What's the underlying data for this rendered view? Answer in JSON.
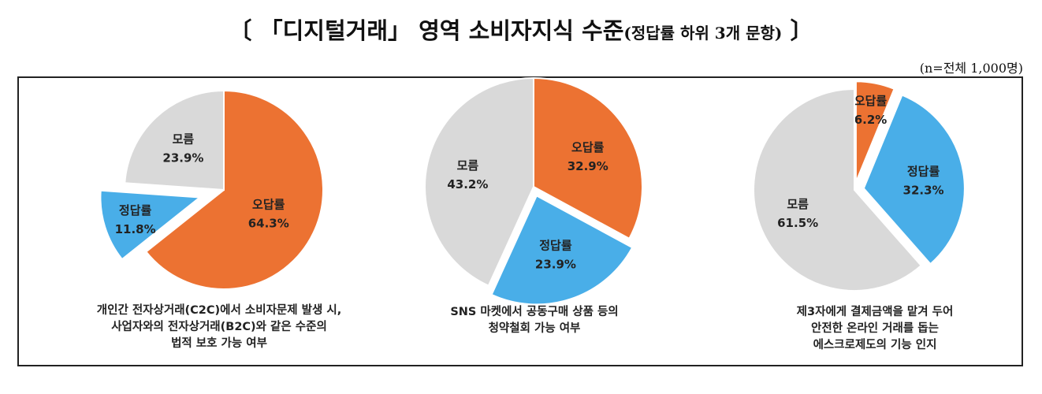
{
  "title": {
    "main": "〔 「디지털거래」 영역 소비자지식 수준",
    "sub": "(정답률 하위 3개 문항)",
    "close": " 〕"
  },
  "note": "(n=전체 1,000명)",
  "colors": {
    "wrong": "#ec7232",
    "correct": "#49aee8",
    "unknown": "#d9d9d9"
  },
  "chart_data": [
    {
      "type": "pie",
      "slices": [
        {
          "label": "오답률",
          "value": 64.3,
          "text": "64.3%",
          "color": "#ec7232"
        },
        {
          "label": "정답률",
          "value": 11.8,
          "text": "11.8%",
          "color": "#49aee8"
        },
        {
          "label": "모름",
          "value": 23.9,
          "text": "23.9%",
          "color": "#d9d9d9"
        }
      ],
      "caption": [
        "개인간 전자상거래(C2C)에서 소비자문제 발생 시,",
        "사업자와의 전자상거래(B2C)와 같은 수준의",
        "법적 보호 가능 여부"
      ]
    },
    {
      "type": "pie",
      "slices": [
        {
          "label": "오답률",
          "value": 32.9,
          "text": "32.9%",
          "color": "#ec7232"
        },
        {
          "label": "정답률",
          "value": 23.9,
          "text": "23.9%",
          "color": "#49aee8"
        },
        {
          "label": "모름",
          "value": 43.2,
          "text": "43.2%",
          "color": "#d9d9d9"
        }
      ],
      "caption": [
        "SNS 마켓에서 공동구매 상품 등의",
        "청약철회 가능 여부"
      ]
    },
    {
      "type": "pie",
      "slices": [
        {
          "label": "오답률",
          "value": 6.2,
          "text": "6.2%",
          "color": "#ec7232"
        },
        {
          "label": "정답률",
          "value": 32.3,
          "text": "32.3%",
          "color": "#49aee8"
        },
        {
          "label": "모름",
          "value": 61.5,
          "text": "61.5%",
          "color": "#d9d9d9"
        }
      ],
      "caption": [
        "제3자에게 결제금액을 맡겨 두어",
        "안전한 온라인 거래를 돕는",
        "에스크로제도의 기능 인지"
      ]
    }
  ]
}
